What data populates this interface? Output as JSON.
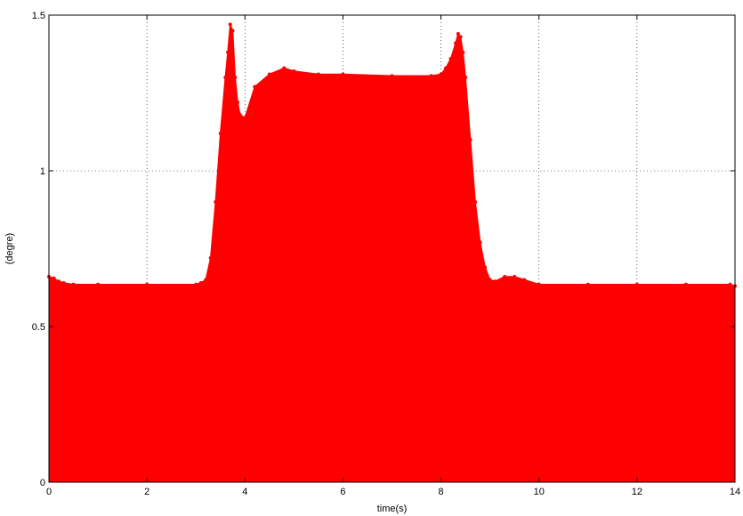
{
  "chart_data": {
    "type": "area",
    "title": "",
    "xlabel": "time(s)",
    "ylabel": "(degre)",
    "xlim": [
      0,
      14
    ],
    "ylim": [
      0,
      1.5
    ],
    "x_ticks": [
      0,
      2,
      4,
      6,
      8,
      10,
      12,
      14
    ],
    "y_ticks": [
      0,
      0.5,
      1,
      1.5
    ],
    "x_tick_labels": [
      "0",
      "2",
      "4",
      "6",
      "8",
      "10",
      "12",
      "14"
    ],
    "y_tick_labels": [
      "0",
      "0.5",
      "1",
      "1.5"
    ],
    "grid": true,
    "series": [
      {
        "color": "#ff0000",
        "x": [
          0,
          0.1,
          0.2,
          0.3,
          0.5,
          1.0,
          2.0,
          3.0,
          3.1,
          3.2,
          3.3,
          3.4,
          3.5,
          3.6,
          3.65,
          3.7,
          3.75,
          3.8,
          3.85,
          3.9,
          4.0,
          4.2,
          4.5,
          4.8,
          5.0,
          5.5,
          6.0,
          7.0,
          7.8,
          8.0,
          8.1,
          8.2,
          8.3,
          8.35,
          8.4,
          8.45,
          8.5,
          8.6,
          8.7,
          8.8,
          8.9,
          9.0,
          9.1,
          9.3,
          9.5,
          9.7,
          10.0,
          11.0,
          12.0,
          13.0,
          13.9,
          14.0
        ],
        "y": [
          0.66,
          0.655,
          0.645,
          0.64,
          0.635,
          0.635,
          0.635,
          0.635,
          0.64,
          0.65,
          0.72,
          0.9,
          1.12,
          1.3,
          1.38,
          1.47,
          1.45,
          1.3,
          1.22,
          1.18,
          1.17,
          1.27,
          1.31,
          1.33,
          1.32,
          1.31,
          1.31,
          1.305,
          1.305,
          1.31,
          1.33,
          1.36,
          1.41,
          1.44,
          1.43,
          1.38,
          1.3,
          1.1,
          0.9,
          0.77,
          0.69,
          0.65,
          0.645,
          0.66,
          0.66,
          0.65,
          0.635,
          0.635,
          0.635,
          0.635,
          0.635,
          0.63
        ]
      }
    ]
  }
}
